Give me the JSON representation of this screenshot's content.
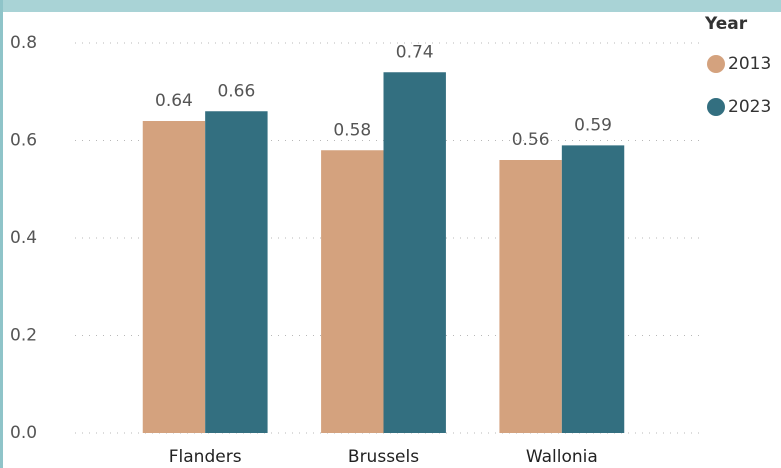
{
  "chart_data": {
    "type": "bar",
    "categories": [
      "Flanders",
      "Brussels",
      "Wallonia"
    ],
    "legend_title": "Year",
    "series": [
      {
        "name": "2013",
        "color": "#d4a27e",
        "values": [
          0.64,
          0.58,
          0.56
        ]
      },
      {
        "name": "2023",
        "color": "#336f80",
        "values": [
          0.66,
          0.74,
          0.59
        ]
      }
    ],
    "ylim": [
      0,
      0.8
    ],
    "yticks": [
      {
        "value": 0,
        "label": "0.0"
      },
      0.2,
      0.4,
      0.6,
      0.8
    ],
    "grid": true,
    "legend": "right"
  }
}
